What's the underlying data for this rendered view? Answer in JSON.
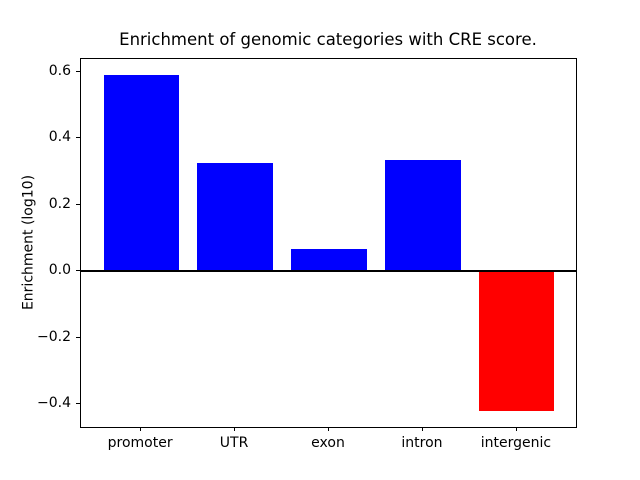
{
  "chart_data": {
    "type": "bar",
    "title": "Enrichment of genomic categories with CRE score.",
    "xlabel": "",
    "ylabel": "Enrichment (log10)",
    "categories": [
      "promoter",
      "UTR",
      "exon",
      "intron",
      "intergenic"
    ],
    "values": [
      0.59,
      0.325,
      0.065,
      0.335,
      -0.42
    ],
    "bar_colors": [
      "#0000ff",
      "#0000ff",
      "#0000ff",
      "#0000ff",
      "#ff0000"
    ],
    "positive_color": "#0000ff",
    "negative_color": "#ff0000",
    "yticks": [
      0.6,
      0.4,
      0.2,
      0.0,
      -0.2,
      -0.4
    ],
    "ytick_labels": [
      "0.6",
      "0.4",
      "0.2",
      "0.0",
      "−0.2",
      "−0.4"
    ],
    "ylim": [
      -0.472,
      0.638
    ],
    "grid": false,
    "legend": "none",
    "zero_line": true,
    "background_color": "#ffffff",
    "spine_color": "#000000"
  }
}
